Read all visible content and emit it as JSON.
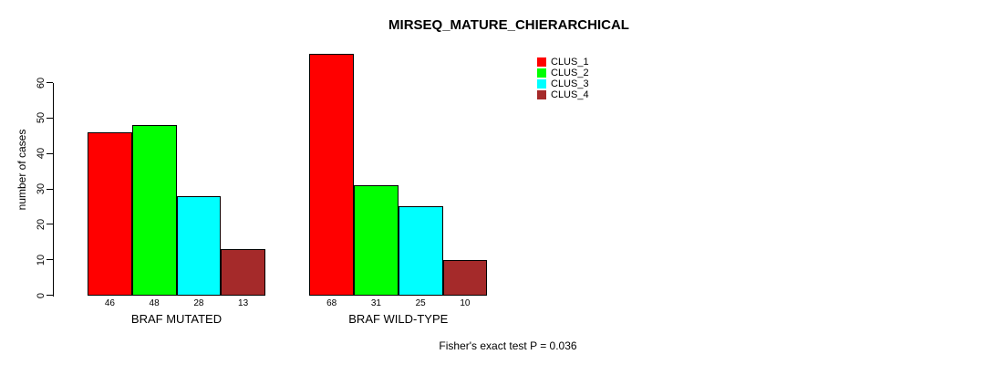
{
  "chart_data": {
    "type": "bar",
    "title": "MIRSEQ_MATURE_CHIERARCHICAL",
    "ylabel": "number of cases",
    "xlabel": "",
    "yticks": [
      0,
      10,
      20,
      30,
      40,
      50,
      60
    ],
    "ylim": [
      0,
      68
    ],
    "grid": false,
    "legend_position": "top-right",
    "categories": [
      "BRAF MUTATED",
      "BRAF WILD-TYPE"
    ],
    "series": [
      {
        "name": "CLUS_1",
        "color": "#FF0000",
        "values": [
          46,
          68
        ]
      },
      {
        "name": "CLUS_2",
        "color": "#00FF00",
        "values": [
          48,
          31
        ]
      },
      {
        "name": "CLUS_3",
        "color": "#00FFFF",
        "values": [
          28,
          25
        ]
      },
      {
        "name": "CLUS_4",
        "color": "#A52A2A",
        "values": [
          13,
          10
        ]
      }
    ],
    "bar_value_labels": [
      [
        "46",
        "48",
        "28",
        "13"
      ],
      [
        "68",
        "31",
        "25",
        "10"
      ]
    ],
    "annotation": "Fisher's exact test P = 0.036"
  }
}
